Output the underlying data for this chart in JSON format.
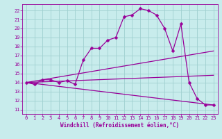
{
  "xlabel": "Windchill (Refroidissement éolien,°C)",
  "xlim": [
    -0.5,
    23.5
  ],
  "ylim": [
    10.5,
    22.7
  ],
  "xticks": [
    0,
    1,
    2,
    3,
    4,
    5,
    6,
    7,
    8,
    9,
    10,
    11,
    12,
    13,
    14,
    15,
    16,
    17,
    18,
    19,
    20,
    21,
    22,
    23
  ],
  "yticks": [
    11,
    12,
    13,
    14,
    15,
    16,
    17,
    18,
    19,
    20,
    21,
    22
  ],
  "bg_color": "#c8ecec",
  "grid_color": "#a0d0d0",
  "line_color": "#990099",
  "line1_x": [
    0,
    1,
    2,
    3,
    4,
    5,
    6,
    7,
    8,
    9,
    10,
    11,
    12,
    13,
    14,
    15,
    16,
    17,
    18,
    19,
    20,
    21,
    22,
    23
  ],
  "line1_y": [
    14.0,
    13.8,
    14.3,
    14.3,
    14.0,
    14.2,
    13.8,
    16.5,
    17.8,
    17.8,
    18.7,
    19.0,
    21.3,
    21.5,
    22.2,
    22.0,
    21.5,
    20.0,
    17.5,
    20.5,
    14.0,
    12.2,
    11.5,
    11.5
  ],
  "line2_x": [
    0,
    23
  ],
  "line2_y": [
    14.0,
    17.5
  ],
  "line3_x": [
    0,
    23
  ],
  "line3_y": [
    14.0,
    11.5
  ],
  "line4_x": [
    0,
    23
  ],
  "line4_y": [
    14.0,
    14.8
  ],
  "marker": "D",
  "markersize": 2.5,
  "linewidth": 0.9,
  "tick_fontsize": 5.0,
  "label_fontsize": 5.5
}
